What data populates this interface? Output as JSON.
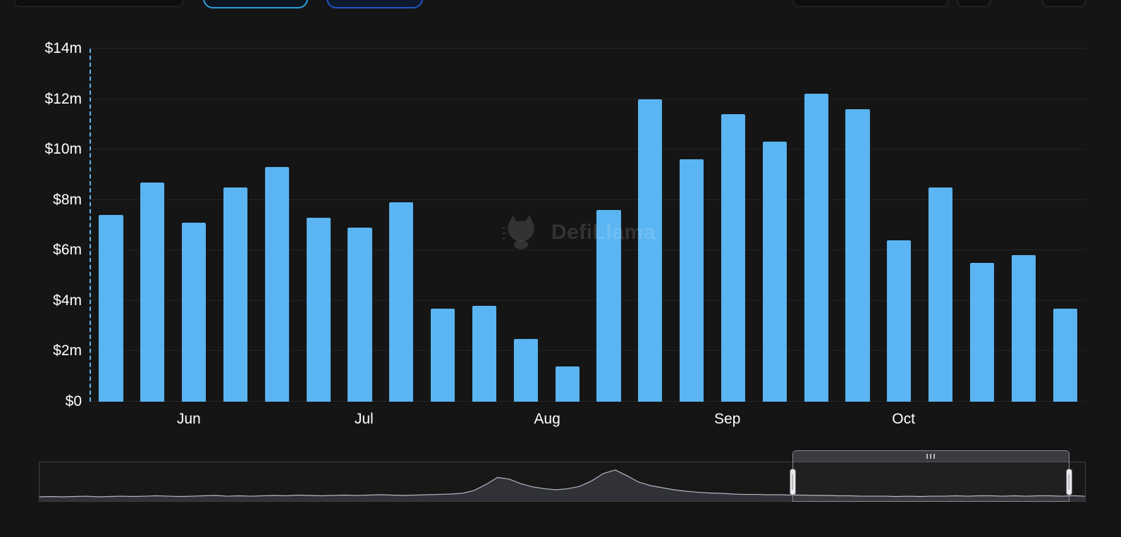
{
  "theme": {
    "page_bg": "#151515",
    "grid_color": "#242428",
    "axis_text_color": "#FFFFFF",
    "bar_color": "#5BB5F2",
    "marker_line_color": "#5BB5F2",
    "pill1_border": "#2D9FE0",
    "pill2_border": "#2457C5",
    "control_border": "#2E2F33",
    "slider_border": "#3E3F44",
    "slider_line": "#CDD0DC",
    "handle_color": "#E9E9EC"
  },
  "watermark": {
    "label": "DefiLlama"
  },
  "chart_data": {
    "type": "bar",
    "title": "",
    "xlabel": "",
    "ylabel": "",
    "unit": "$m (USD millions, weekly)",
    "grid": true,
    "legend": null,
    "ylim": [
      0,
      14
    ],
    "y_ticks": [
      {
        "value": 0,
        "label": "$0"
      },
      {
        "value": 2,
        "label": "$2m"
      },
      {
        "value": 4,
        "label": "$4m"
      },
      {
        "value": 6,
        "label": "$6m"
      },
      {
        "value": 8,
        "label": "$8m"
      },
      {
        "value": 10,
        "label": "$10m"
      },
      {
        "value": 12,
        "label": "$12m"
      },
      {
        "value": 14,
        "label": "$14m"
      }
    ],
    "x_ticks": [
      {
        "label": "Jun",
        "pos": 0.099
      },
      {
        "label": "Jul",
        "pos": 0.275
      },
      {
        "label": "Aug",
        "pos": 0.459
      },
      {
        "label": "Sep",
        "pos": 0.64
      },
      {
        "label": "Oct",
        "pos": 0.817
      }
    ],
    "bar_color": "#5BB5F2",
    "values": [
      7.4,
      8.7,
      7.1,
      8.5,
      9.3,
      7.3,
      6.9,
      7.9,
      3.7,
      3.8,
      2.5,
      1.4,
      7.6,
      12.0,
      9.6,
      11.4,
      10.3,
      12.2,
      11.6,
      6.4,
      8.5,
      5.5,
      5.8,
      3.7
    ],
    "overview_series": [
      0.1,
      0.11,
      0.1,
      0.11,
      0.12,
      0.1,
      0.11,
      0.12,
      0.11,
      0.12,
      0.13,
      0.12,
      0.11,
      0.12,
      0.13,
      0.14,
      0.12,
      0.13,
      0.12,
      0.13,
      0.14,
      0.13,
      0.15,
      0.14,
      0.13,
      0.14,
      0.15,
      0.14,
      0.15,
      0.16,
      0.15,
      0.14,
      0.15,
      0.16,
      0.17,
      0.18,
      0.2,
      0.28,
      0.45,
      0.65,
      0.6,
      0.47,
      0.38,
      0.33,
      0.3,
      0.33,
      0.4,
      0.55,
      0.76,
      0.86,
      0.7,
      0.52,
      0.42,
      0.36,
      0.3,
      0.26,
      0.23,
      0.21,
      0.2,
      0.18,
      0.17,
      0.17,
      0.16,
      0.16,
      0.15,
      0.15,
      0.14,
      0.14,
      0.13,
      0.13,
      0.12,
      0.12,
      0.12,
      0.11,
      0.12,
      0.11,
      0.12,
      0.12,
      0.13,
      0.12,
      0.13,
      0.13,
      0.12,
      0.13,
      0.12,
      0.13,
      0.13,
      0.12,
      0.13,
      0.12
    ],
    "zoom_window": {
      "start_pct": 72.0,
      "end_pct": 98.5
    }
  }
}
